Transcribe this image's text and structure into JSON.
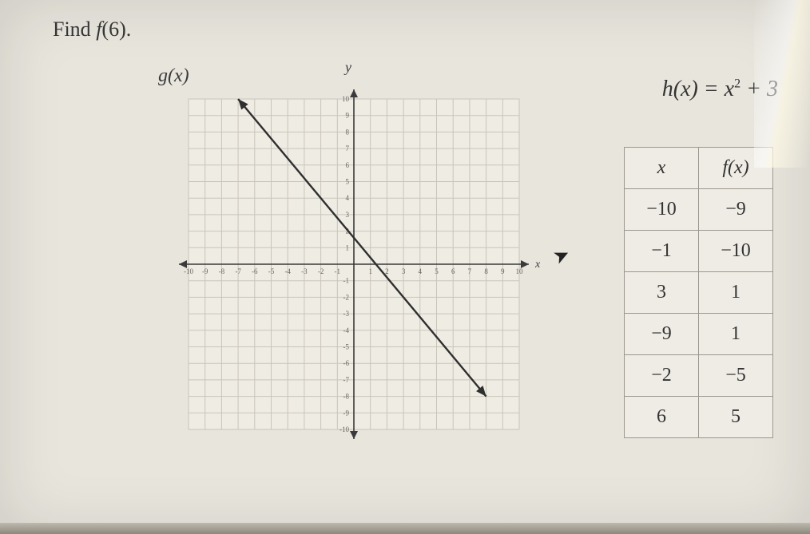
{
  "prompt_prefix": "Find ",
  "prompt_fn": "f",
  "prompt_arg": "(6).",
  "g_label": "g(x)",
  "y_label": "y",
  "formula_lhs": "h(x) = x",
  "formula_exp": "2",
  "formula_rhs": " + 3",
  "table": {
    "header_x": "x",
    "header_fx": "f(x)",
    "rows": [
      {
        "x": "−10",
        "fx": "−9"
      },
      {
        "x": "−1",
        "fx": "−10"
      },
      {
        "x": "3",
        "fx": "1"
      },
      {
        "x": "−9",
        "fx": "1"
      },
      {
        "x": "−2",
        "fx": "−5"
      },
      {
        "x": "6",
        "fx": "5"
      }
    ]
  },
  "chart": {
    "type": "line",
    "xlim": [
      -10,
      10
    ],
    "ylim": [
      -10,
      10
    ],
    "tick_step": 1,
    "background_color": "#e6e3db",
    "plot_bg": "#efece4",
    "grid_color": "#c9c5bb",
    "axis_color": "#3a3a3a",
    "tick_label_color": "#676560",
    "tick_label_fontsize": 9,
    "line": {
      "p1": [
        -7,
        10
      ],
      "p2": [
        8,
        -8
      ],
      "color": "#2f2f2f",
      "width": 2.4
    },
    "arrow_size": 10,
    "axis_x_label": "x"
  }
}
